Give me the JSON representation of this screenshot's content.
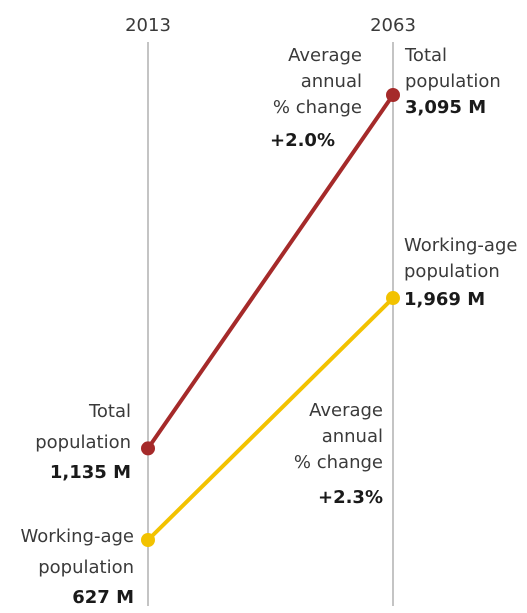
{
  "chart_data": {
    "type": "line",
    "x": [
      "2013",
      "2063"
    ],
    "series": [
      {
        "values": [
          1135,
          3095
        ],
        "color": "#a52a2a",
        "start_label": [
          "Total",
          "population"
        ],
        "start_value": "1,135 M",
        "end_label": [
          "Total",
          "population"
        ],
        "end_value": "3,095 M",
        "change_label": [
          "Average",
          "annual",
          "% change"
        ],
        "change_value": "+2.0%"
      },
      {
        "values": [
          627,
          1969
        ],
        "color": "#f2c200",
        "start_label": [
          "Working-age",
          "population"
        ],
        "start_value": "627 M",
        "end_label": [
          "Working-age",
          "population"
        ],
        "end_value": "1,969 M",
        "change_label": [
          "Average",
          "annual",
          "% change"
        ],
        "change_value": "+2.3%"
      }
    ],
    "axis_color": "#b0b0b0"
  }
}
